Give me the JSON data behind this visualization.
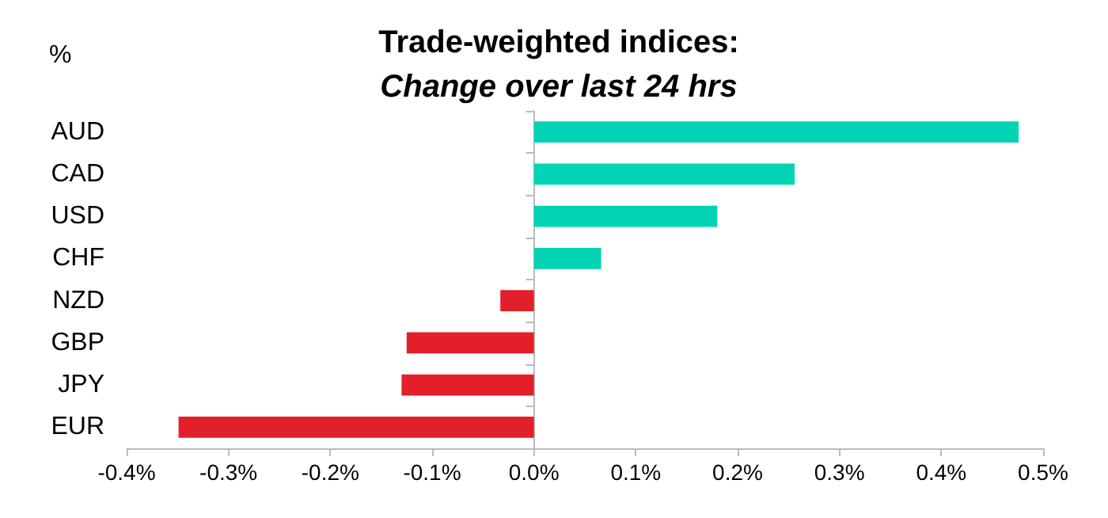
{
  "chart_data": {
    "type": "bar",
    "orientation": "horizontal",
    "title": "Trade-weighted indices:",
    "subtitle": "Change over last 24 hrs",
    "annotations": [
      "%"
    ],
    "categories": [
      "AUD",
      "CAD",
      "USD",
      "CHF",
      "NZD",
      "GBP",
      "JPY",
      "EUR"
    ],
    "values": [
      0.476,
      0.256,
      0.18,
      0.066,
      -0.033,
      -0.125,
      -0.13,
      -0.349
    ],
    "colors": [
      "#00d4b4",
      "#00d4b4",
      "#00d4b4",
      "#00d4b4",
      "#e3202a",
      "#e3202a",
      "#e3202a",
      "#e3202a"
    ],
    "xlim": [
      -0.4,
      0.5
    ],
    "xticks": [
      {
        "value": -0.4,
        "label": "-0.4%"
      },
      {
        "value": -0.3,
        "label": "-0.3%"
      },
      {
        "value": -0.2,
        "label": "-0.2%"
      },
      {
        "value": -0.1,
        "label": "-0.1%"
      },
      {
        "value": 0,
        "label": "0.0%"
      },
      {
        "value": 0.1,
        "label": "0.1%"
      },
      {
        "value": 0.2,
        "label": "0.2%"
      },
      {
        "value": 0.3,
        "label": "0.3%"
      },
      {
        "value": 0.4,
        "label": "0.4%"
      },
      {
        "value": 0.5,
        "label": "0.5%"
      }
    ]
  }
}
